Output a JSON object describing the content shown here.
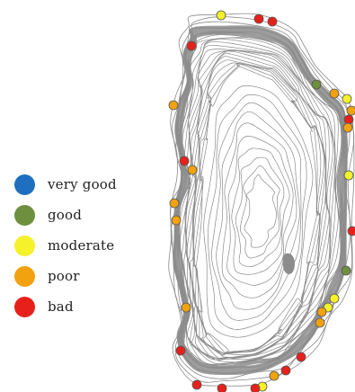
{
  "legend": {
    "items": [
      {
        "label": "very good",
        "color": "#1f6fc0"
      },
      {
        "label": "good",
        "color": "#6e8f3d"
      },
      {
        "label": "moderate",
        "color": "#f5f12a"
      },
      {
        "label": "poor",
        "color": "#f2a20f"
      },
      {
        "label": "bad",
        "color": "#e8201c"
      }
    ]
  },
  "map": {
    "contour_color": "#8a8a8a",
    "shore_color": "#8c8c8c",
    "marker_outline": "#555555",
    "sites": [
      {
        "status": "moderate"
      },
      {
        "status": "bad"
      },
      {
        "status": "bad"
      },
      {
        "status": "bad"
      },
      {
        "status": "good"
      },
      {
        "status": "poor"
      },
      {
        "status": "moderate"
      },
      {
        "status": "poor"
      },
      {
        "status": "bad"
      },
      {
        "status": "poor"
      },
      {
        "status": "poor"
      },
      {
        "status": "bad"
      },
      {
        "status": "poor"
      },
      {
        "status": "moderate"
      },
      {
        "status": "poor"
      },
      {
        "status": "poor"
      },
      {
        "status": "bad"
      },
      {
        "status": "good"
      },
      {
        "status": "moderate"
      },
      {
        "status": "moderate"
      },
      {
        "status": "poor"
      },
      {
        "status": "poor"
      },
      {
        "status": "poor"
      },
      {
        "status": "bad"
      },
      {
        "status": "bad"
      },
      {
        "status": "bad"
      },
      {
        "status": "bad"
      },
      {
        "status": "poor"
      },
      {
        "status": "moderate"
      },
      {
        "status": "bad"
      },
      {
        "status": "bad"
      }
    ]
  }
}
